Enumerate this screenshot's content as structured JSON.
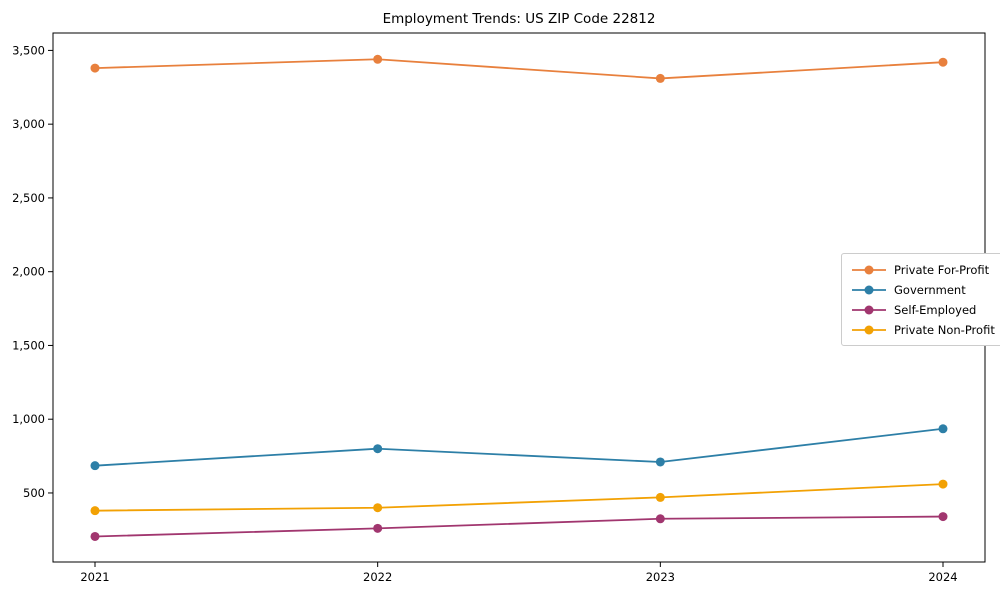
{
  "chart_data": {
    "type": "line",
    "title": "Employment Trends: US ZIP Code 22812",
    "x": [
      2021,
      2022,
      2023,
      2024
    ],
    "x_labels": [
      "2021",
      "2022",
      "2023",
      "2024"
    ],
    "series": [
      {
        "name": "Private For-Profit",
        "color": "#e8803d",
        "values": [
          3380,
          3440,
          3310,
          3420
        ]
      },
      {
        "name": "Government",
        "color": "#2d7fa7",
        "values": [
          685,
          800,
          710,
          935
        ]
      },
      {
        "name": "Self-Employed",
        "color": "#a1366f",
        "values": [
          205,
          260,
          325,
          340
        ]
      },
      {
        "name": "Private Non-Profit",
        "color": "#f2a104",
        "values": [
          380,
          400,
          470,
          560
        ]
      }
    ],
    "ylim": [
      32,
      3618
    ],
    "yticks": [
      {
        "value": 500,
        "label": "500"
      },
      {
        "value": 1000,
        "label": "1,000"
      },
      {
        "value": 1500,
        "label": "1,500"
      },
      {
        "value": 2000,
        "label": "2,000"
      },
      {
        "value": 2500,
        "label": "2,500"
      },
      {
        "value": 3000,
        "label": "3,000"
      },
      {
        "value": 3500,
        "label": "3,500"
      }
    ],
    "grid": false,
    "legend_position": "center-right",
    "marker": "circle",
    "axis_color": "#000000",
    "background": "#ffffff"
  }
}
